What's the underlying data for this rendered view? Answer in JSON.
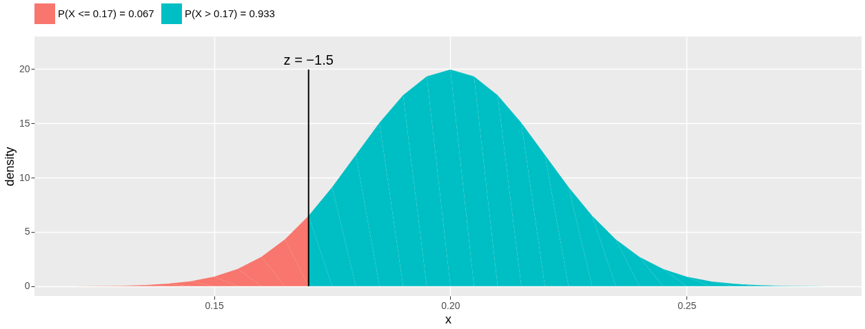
{
  "chart_data": {
    "type": "area",
    "xlabel": "x",
    "ylabel": "density",
    "series": [
      {
        "name": "P(X <= 0.17) = 0.067",
        "color": "#f8766d",
        "x": [
          0.12,
          0.125,
          0.13,
          0.135,
          0.14,
          0.145,
          0.15,
          0.155,
          0.16,
          0.165,
          0.17
        ],
        "values": [
          0.01,
          0.02,
          0.04,
          0.1,
          0.22,
          0.45,
          0.88,
          1.59,
          2.7,
          4.32,
          6.48
        ]
      },
      {
        "name": "P(X >  0.17) = 0.933",
        "color": "#00bfc4",
        "x": [
          0.17,
          0.175,
          0.18,
          0.185,
          0.19,
          0.195,
          0.2,
          0.205,
          0.21,
          0.215,
          0.22,
          0.225,
          0.23,
          0.235,
          0.24,
          0.245,
          0.25,
          0.255,
          0.26,
          0.265,
          0.27,
          0.275,
          0.28
        ],
        "values": [
          6.48,
          9.13,
          12.1,
          15.06,
          17.6,
          19.33,
          19.95,
          19.33,
          17.6,
          15.06,
          12.1,
          9.13,
          6.48,
          4.32,
          2.7,
          1.59,
          0.88,
          0.45,
          0.22,
          0.1,
          0.04,
          0.02,
          0.01
        ]
      }
    ],
    "xlim": [
      0.112,
      0.287
    ],
    "ylim": [
      -0.9,
      23
    ],
    "xticks": [
      0.15,
      {
        "value": 0.2,
        "label": "0.20"
      },
      0.25
    ],
    "yticks": [
      0,
      5,
      10,
      15,
      20
    ],
    "ref_lines": [
      {
        "axis": "x",
        "value": 0.17,
        "color": "#000000"
      }
    ],
    "annotations": [
      {
        "text": "z =  −1.5",
        "x": 0.17,
        "y": 20
      }
    ],
    "grid": true,
    "legend": "top"
  }
}
